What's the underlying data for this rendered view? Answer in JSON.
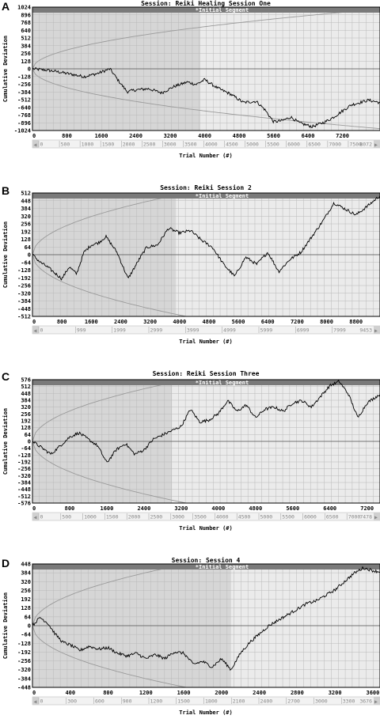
{
  "chart_data": [
    {
      "type": "line",
      "letter": "A",
      "title": "Session: Reiki Healing Session One",
      "segment_label": "*Initial Segment",
      "xlabel": "Trial Number (#)",
      "ylabel": "Cumulative Deviation",
      "xlim": [
        0,
        8072
      ],
      "ylim": [
        -1024,
        1024
      ],
      "yticks": [
        1024,
        896,
        768,
        640,
        512,
        384,
        256,
        128,
        0,
        -128,
        -256,
        -384,
        -512,
        -640,
        -768,
        -896,
        -1024
      ],
      "xticks": [
        0,
        800,
        1600,
        2400,
        3200,
        4000,
        4800,
        5600,
        6400,
        7200
      ],
      "segment_end": 3900,
      "sublabels": [
        "0",
        "500",
        "1000",
        "1500",
        "2000",
        "2500",
        "3000",
        "3500",
        "4000",
        "4500",
        "5000",
        "5500",
        "6000",
        "6500",
        "7000",
        "7500"
      ],
      "sub_end_label": "8072",
      "series": [
        {
          "x": [
            0,
            300,
            600,
            900,
            1200,
            1500,
            1800,
            2000,
            2200,
            2400,
            2700,
            3000,
            3300,
            3600,
            3800,
            4000,
            4300,
            4600,
            4900,
            5200,
            5400,
            5600,
            5800,
            6000,
            6200,
            6500,
            6800,
            7000,
            7200,
            7400,
            7600,
            7800,
            8072
          ],
          "y": [
            0,
            -20,
            -50,
            -90,
            -130,
            -80,
            0,
            -200,
            -380,
            -350,
            -330,
            -400,
            -290,
            -220,
            -260,
            -180,
            -320,
            -420,
            -560,
            -540,
            -680,
            -880,
            -860,
            -800,
            -900,
            -960,
            -880,
            -800,
            -700,
            -600,
            -560,
            -520,
            -560
          ]
        }
      ]
    },
    {
      "type": "line",
      "letter": "B",
      "title": "Session: Reiki Session 2",
      "segment_label": "*Initial Segment",
      "xlabel": "Trial Number (#)",
      "ylabel": "Cumulative Deviation",
      "xlim": [
        0,
        9453
      ],
      "ylim": [
        -512,
        512
      ],
      "yticks": [
        512,
        448,
        384,
        320,
        256,
        192,
        128,
        64,
        0,
        -64,
        -128,
        -192,
        -256,
        -320,
        -384,
        -448,
        -512
      ],
      "xticks": [
        0,
        800,
        1600,
        2400,
        3200,
        4000,
        4800,
        5600,
        6400,
        7200,
        8000,
        8800
      ],
      "segment_end": 3900,
      "sublabels": [
        "0",
        "999",
        "1999",
        "2999",
        "3999",
        "4999",
        "5999",
        "6999",
        "7999"
      ],
      "sub_end_label": "9453",
      "series": [
        {
          "x": [
            0,
            200,
            400,
            600,
            800,
            1000,
            1200,
            1400,
            1600,
            1800,
            2000,
            2300,
            2600,
            2900,
            3100,
            3400,
            3700,
            4000,
            4300,
            4600,
            4900,
            5200,
            5500,
            5800,
            6100,
            6400,
            6700,
            7000,
            7300,
            7600,
            7900,
            8200,
            8500,
            8800,
            9100,
            9453
          ],
          "y": [
            0,
            -60,
            -100,
            -150,
            -200,
            -100,
            -160,
            20,
            80,
            100,
            150,
            20,
            -200,
            -40,
            60,
            80,
            220,
            180,
            200,
            120,
            60,
            -80,
            -180,
            -20,
            -80,
            20,
            -140,
            -40,
            20,
            150,
            280,
            430,
            380,
            330,
            400,
            490
          ]
        }
      ]
    },
    {
      "type": "line",
      "letter": "C",
      "title": "Session: Reiki Session Three",
      "segment_label": "*Initial Segment",
      "xlabel": "Trial Number (#)",
      "ylabel": "Cumulative Deviation",
      "xlim": [
        0,
        7478
      ],
      "ylim": [
        -576,
        576
      ],
      "yticks": [
        576,
        512,
        448,
        384,
        320,
        256,
        192,
        128,
        64,
        0,
        -64,
        -128,
        -192,
        -256,
        -320,
        -384,
        -448,
        -512,
        -576
      ],
      "xticks": [
        0,
        800,
        1600,
        2400,
        3200,
        4000,
        4800,
        5600,
        6400,
        7200
      ],
      "segment_end": 3000,
      "sublabels": [
        "0",
        "500",
        "1000",
        "1500",
        "2000",
        "2500",
        "3000",
        "3500",
        "4000",
        "4500",
        "5000",
        "5500",
        "6000",
        "6500",
        "7000"
      ],
      "sub_end_label": "7478",
      "series": [
        {
          "x": [
            0,
            200,
            400,
            600,
            800,
            1000,
            1200,
            1400,
            1600,
            1800,
            2000,
            2200,
            2400,
            2600,
            2800,
            3000,
            3200,
            3400,
            3600,
            3800,
            4000,
            4200,
            4400,
            4600,
            4800,
            5000,
            5200,
            5400,
            5600,
            5800,
            6000,
            6200,
            6400,
            6600,
            6800,
            7000,
            7200,
            7478
          ],
          "y": [
            0,
            -60,
            -120,
            -40,
            40,
            80,
            20,
            -40,
            -200,
            -80,
            -20,
            -120,
            -80,
            20,
            60,
            100,
            140,
            300,
            180,
            200,
            260,
            380,
            280,
            340,
            220,
            300,
            320,
            280,
            360,
            380,
            320,
            420,
            520,
            560,
            440,
            220,
            360,
            440
          ]
        }
      ]
    },
    {
      "type": "line",
      "letter": "D",
      "title": "Session: Session 4",
      "segment_label": "*Initial Segment",
      "xlabel": "Trial Number (#)",
      "ylabel": "Cumulative Deviation",
      "xlim": [
        0,
        3676
      ],
      "ylim": [
        -448,
        448
      ],
      "yticks": [
        448,
        384,
        320,
        256,
        192,
        128,
        64,
        0,
        -64,
        -128,
        -192,
        -256,
        -320,
        -384,
        -448
      ],
      "xticks": [
        0,
        400,
        800,
        1200,
        1600,
        2000,
        2400,
        2800,
        3200,
        3600
      ],
      "segment_end": 2100,
      "sublabels": [
        "0",
        "300",
        "600",
        "900",
        "1200",
        "1500",
        "1800",
        "2100",
        "2400",
        "2700",
        "3000",
        "3300"
      ],
      "sub_end_label": "3676",
      "series": [
        {
          "x": [
            0,
            80,
            160,
            240,
            320,
            400,
            500,
            600,
            700,
            800,
            900,
            1000,
            1100,
            1200,
            1300,
            1400,
            1500,
            1600,
            1700,
            1800,
            1900,
            2000,
            2100,
            2200,
            2300,
            2400,
            2500,
            2600,
            2700,
            2800,
            2900,
            3000,
            3100,
            3200,
            3300,
            3400,
            3500,
            3600,
            3676
          ],
          "y": [
            0,
            60,
            20,
            -60,
            -120,
            -140,
            -180,
            -150,
            -170,
            -160,
            -200,
            -220,
            -200,
            -240,
            -210,
            -240,
            -190,
            -200,
            -280,
            -260,
            -300,
            -240,
            -320,
            -200,
            -120,
            -60,
            0,
            40,
            80,
            120,
            160,
            180,
            220,
            260,
            320,
            380,
            420,
            400,
            390
          ]
        }
      ]
    }
  ]
}
